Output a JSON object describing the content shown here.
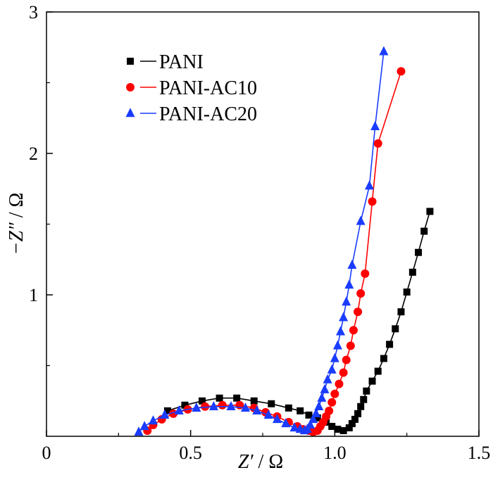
{
  "chart_data": {
    "type": "scatter",
    "title": "",
    "xlabel": {
      "var": "Z′",
      "unit": " / Ω"
    },
    "ylabel": {
      "var": "−Z″",
      "unit": " / Ω"
    },
    "xlim": [
      0,
      1.5
    ],
    "ylim": [
      0,
      3
    ],
    "xticks": [
      0,
      0.5,
      1.0,
      1.5
    ],
    "xtick_labels": [
      "0",
      "0.5",
      "1.0",
      "1.5"
    ],
    "yticks": [
      1,
      2,
      3
    ],
    "ytick_labels": [
      "1",
      "2",
      "3"
    ],
    "grid": false,
    "legend_position": "top-left",
    "series": [
      {
        "name": "PANI",
        "color": "#000000",
        "marker": "square",
        "points": [
          [
            0.42,
            0.18
          ],
          [
            0.48,
            0.22
          ],
          [
            0.54,
            0.25
          ],
          [
            0.6,
            0.27
          ],
          [
            0.66,
            0.27
          ],
          [
            0.72,
            0.25
          ],
          [
            0.78,
            0.23
          ],
          [
            0.84,
            0.2
          ],
          [
            0.88,
            0.18
          ],
          [
            0.91,
            0.15
          ],
          [
            0.94,
            0.13
          ],
          [
            0.97,
            0.1
          ],
          [
            0.99,
            0.07
          ],
          [
            1.01,
            0.05
          ],
          [
            1.03,
            0.04
          ],
          [
            1.05,
            0.06
          ],
          [
            1.06,
            0.09
          ],
          [
            1.07,
            0.12
          ],
          [
            1.08,
            0.16
          ],
          [
            1.09,
            0.21
          ],
          [
            1.1,
            0.26
          ],
          [
            1.11,
            0.32
          ],
          [
            1.13,
            0.39
          ],
          [
            1.15,
            0.46
          ],
          [
            1.17,
            0.55
          ],
          [
            1.19,
            0.65
          ],
          [
            1.21,
            0.76
          ],
          [
            1.23,
            0.88
          ],
          [
            1.25,
            1.02
          ],
          [
            1.27,
            1.16
          ],
          [
            1.29,
            1.3
          ],
          [
            1.31,
            1.45
          ],
          [
            1.33,
            1.59
          ]
        ]
      },
      {
        "name": "PANI-AC10",
        "color": "#ff0000",
        "marker": "circle",
        "points": [
          [
            0.35,
            0.04
          ],
          [
            0.37,
            0.08
          ],
          [
            0.4,
            0.12
          ],
          [
            0.44,
            0.16
          ],
          [
            0.49,
            0.19
          ],
          [
            0.55,
            0.21
          ],
          [
            0.61,
            0.22
          ],
          [
            0.67,
            0.22
          ],
          [
            0.72,
            0.2
          ],
          [
            0.76,
            0.17
          ],
          [
            0.8,
            0.14
          ],
          [
            0.84,
            0.1
          ],
          [
            0.87,
            0.07
          ],
          [
            0.89,
            0.05
          ],
          [
            0.91,
            0.04
          ],
          [
            0.925,
            0.03
          ],
          [
            0.94,
            0.04
          ],
          [
            0.95,
            0.07
          ],
          [
            0.96,
            0.1
          ],
          [
            0.97,
            0.14
          ],
          [
            0.98,
            0.18
          ],
          [
            0.99,
            0.24
          ],
          [
            1.0,
            0.3
          ],
          [
            1.015,
            0.37
          ],
          [
            1.03,
            0.45
          ],
          [
            1.04,
            0.54
          ],
          [
            1.055,
            0.64
          ],
          [
            1.065,
            0.75
          ],
          [
            1.08,
            0.88
          ],
          [
            1.09,
            1.01
          ],
          [
            1.105,
            1.15
          ],
          [
            1.13,
            1.66
          ],
          [
            1.15,
            2.07
          ],
          [
            1.23,
            2.58
          ]
        ]
      },
      {
        "name": "PANI-AC20",
        "color": "#1a3cff",
        "marker": "triangle",
        "points": [
          [
            0.32,
            0.03
          ],
          [
            0.34,
            0.07
          ],
          [
            0.37,
            0.11
          ],
          [
            0.41,
            0.15
          ],
          [
            0.46,
            0.18
          ],
          [
            0.52,
            0.2
          ],
          [
            0.58,
            0.21
          ],
          [
            0.64,
            0.21
          ],
          [
            0.69,
            0.2
          ],
          [
            0.73,
            0.18
          ],
          [
            0.77,
            0.15
          ],
          [
            0.8,
            0.12
          ],
          [
            0.83,
            0.09
          ],
          [
            0.86,
            0.06
          ],
          [
            0.88,
            0.05
          ],
          [
            0.895,
            0.04
          ],
          [
            0.905,
            0.05
          ],
          [
            0.915,
            0.08
          ],
          [
            0.925,
            0.12
          ],
          [
            0.935,
            0.16
          ],
          [
            0.945,
            0.21
          ],
          [
            0.955,
            0.27
          ],
          [
            0.965,
            0.33
          ],
          [
            0.975,
            0.4
          ],
          [
            0.99,
            0.47
          ],
          [
            1.0,
            0.55
          ],
          [
            1.01,
            0.64
          ],
          [
            1.02,
            0.74
          ],
          [
            1.03,
            0.84
          ],
          [
            1.04,
            0.95
          ],
          [
            1.05,
            1.07
          ],
          [
            1.06,
            1.21
          ],
          [
            1.09,
            1.52
          ],
          [
            1.12,
            1.77
          ],
          [
            1.14,
            2.19
          ],
          [
            1.17,
            2.72
          ]
        ]
      }
    ]
  }
}
